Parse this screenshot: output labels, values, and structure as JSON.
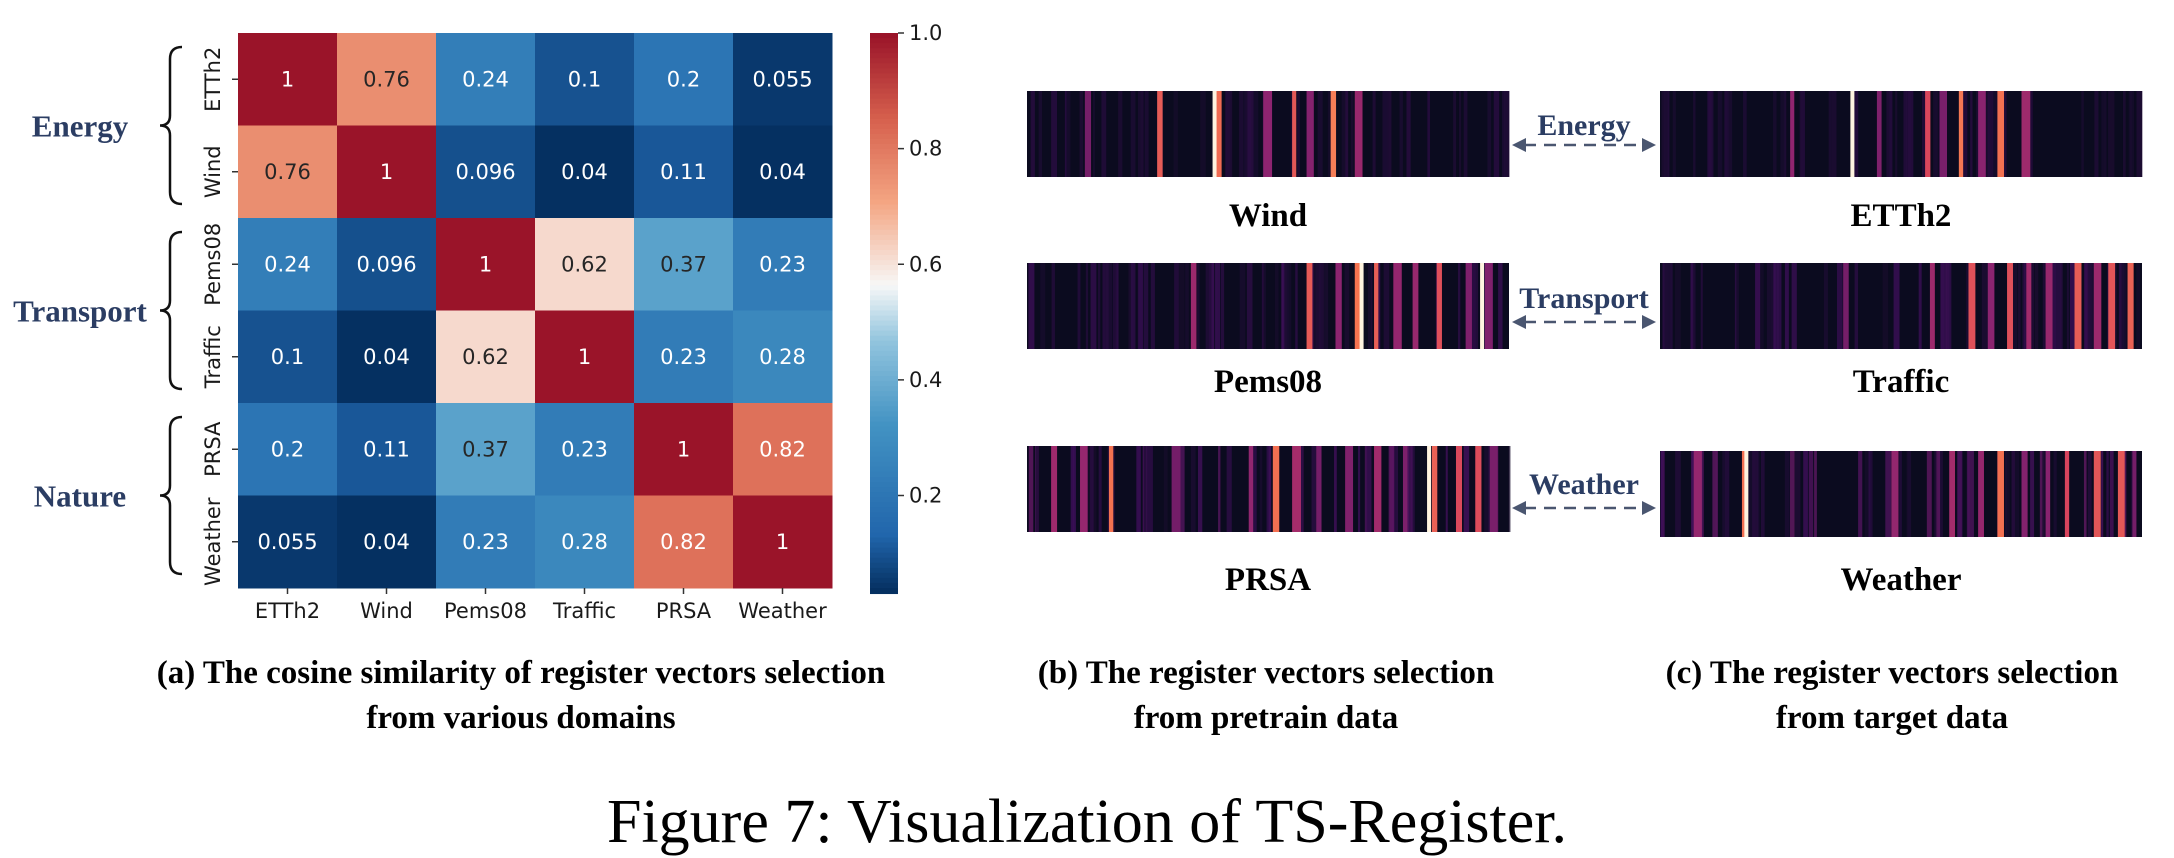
{
  "figure_caption": "Figure 7: Visualization of TS-Register.",
  "colors": {
    "group_label": "#2b3d63",
    "arrow": "#4a5670",
    "stripe_base": "#0b0b1f"
  },
  "chart_data": [
    {
      "type": "heatmap",
      "caption": {
        "line1": "(a) The cosine similarity of register vectors selection",
        "line2": "from various domains"
      },
      "x_categories": [
        "ETTh2",
        "Wind",
        "Pems08",
        "Traffic",
        "PRSA",
        "Weather"
      ],
      "y_categories": [
        "ETTh2",
        "Wind",
        "Pems08",
        "Traffic",
        "PRSA",
        "Weather"
      ],
      "groups": [
        {
          "label": "Energy",
          "rows": [
            0,
            1
          ]
        },
        {
          "label": "Transport",
          "rows": [
            2,
            3
          ]
        },
        {
          "label": "Nature",
          "rows": [
            4,
            5
          ]
        }
      ],
      "values": [
        [
          1,
          0.76,
          0.24,
          0.1,
          0.2,
          0.055
        ],
        [
          0.76,
          1,
          0.096,
          0.04,
          0.11,
          0.04
        ],
        [
          0.24,
          0.096,
          1,
          0.62,
          0.37,
          0.23
        ],
        [
          0.1,
          0.04,
          0.62,
          1,
          0.23,
          0.28
        ],
        [
          0.2,
          0.11,
          0.37,
          0.23,
          1,
          0.82
        ],
        [
          0.055,
          0.04,
          0.23,
          0.28,
          0.82,
          1
        ]
      ],
      "value_labels": [
        [
          "1",
          "0.76",
          "0.24",
          "0.1",
          "0.2",
          "0.055"
        ],
        [
          "0.76",
          "1",
          "0.096",
          "0.04",
          "0.11",
          "0.04"
        ],
        [
          "0.24",
          "0.096",
          "1",
          "0.62",
          "0.37",
          "0.23"
        ],
        [
          "0.1",
          "0.04",
          "0.62",
          "1",
          "0.23",
          "0.28"
        ],
        [
          "0.2",
          "0.11",
          "0.37",
          "0.23",
          "1",
          "0.82"
        ],
        [
          "0.055",
          "0.04",
          "0.23",
          "0.28",
          "0.82",
          "1"
        ]
      ],
      "colorbar": {
        "range": [
          0.04,
          1.0
        ],
        "ticks": [
          "0.2",
          "0.4",
          "0.6",
          "0.8",
          "1.0"
        ],
        "colormap": "RdBu_r"
      }
    },
    {
      "type": "heatmap",
      "caption": {
        "line1": "(b) The register vectors selection",
        "line2": "from pretrain data"
      },
      "colormap": "magma",
      "note": "register vector selection stripes",
      "strips": [
        {
          "label": "Wind",
          "bright_positions": [
            0.27,
            0.39,
            0.55,
            0.63
          ],
          "dim_positions": [
            0.12,
            0.49,
            0.58,
            0.68
          ],
          "white_positions": [
            0.385
          ]
        },
        {
          "label": "Pems08",
          "bright_positions": [
            0.58,
            0.68,
            0.72,
            0.85
          ],
          "dim_positions": [
            0.34,
            0.64,
            0.76,
            0.8,
            0.91,
            0.95
          ],
          "white_positions": [
            0.69,
            0.94
          ]
        },
        {
          "label": "PRSA",
          "bright_positions": [
            0.17,
            0.51,
            0.84,
            0.89,
            0.93
          ],
          "dim_positions": [
            0.05,
            0.11,
            0.3,
            0.46,
            0.55,
            0.6,
            0.66,
            0.72,
            0.78,
            0.96
          ],
          "white_positions": [
            0.83
          ]
        }
      ]
    },
    {
      "type": "heatmap",
      "caption": {
        "line1": "(c) The register vectors selection",
        "line2": "from target data"
      },
      "colormap": "magma",
      "strips": [
        {
          "label": "ETTh2",
          "bright_positions": [
            0.55,
            0.62,
            0.7
          ],
          "dim_positions": [
            0.27,
            0.45,
            0.58,
            0.66,
            0.75
          ],
          "white_positions": [
            0.395
          ]
        },
        {
          "label": "Traffic",
          "bright_positions": [
            0.64,
            0.72,
            0.86,
            0.93,
            0.97
          ],
          "dim_positions": [
            0.38,
            0.56,
            0.68,
            0.76,
            0.8,
            0.9
          ],
          "white_positions": []
        },
        {
          "label": "Weather",
          "bright_positions": [
            0.17,
            0.7,
            0.84,
            0.9,
            0.95
          ],
          "dim_positions": [
            0.07,
            0.48,
            0.6,
            0.66,
            0.75,
            0.8,
            0.98
          ],
          "white_positions": [
            0.175
          ]
        }
      ]
    }
  ],
  "connectors": [
    "Energy",
    "Transport",
    "Weather"
  ]
}
